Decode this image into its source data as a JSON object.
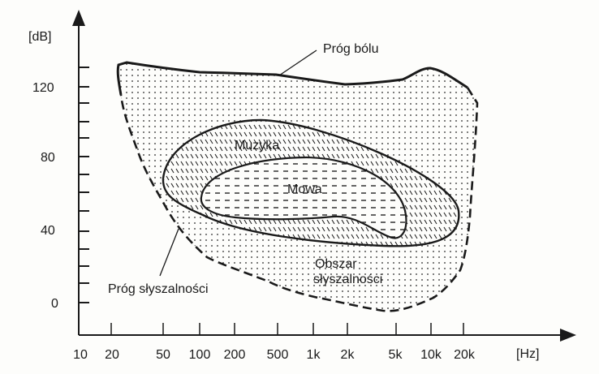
{
  "axes": {
    "y_unit": "[dB]",
    "x_unit": "[Hz]",
    "y_ticks": [
      "120",
      "80",
      "40",
      "0"
    ],
    "x_ticks": [
      "10",
      "20",
      "50",
      "100",
      "200",
      "500",
      "1k",
      "2k",
      "5k",
      "10k",
      "20k"
    ]
  },
  "regions": {
    "pain_threshold": "Próg bólu",
    "hearing_threshold": "Próg słyszalności",
    "hearing_area_line1": "Obszar",
    "hearing_area_line2": "słyszalności",
    "music": "Muzyka",
    "speech": "Mowa"
  },
  "colors": {
    "ink": "#1a1a1a",
    "background": "#fdfdfb"
  }
}
